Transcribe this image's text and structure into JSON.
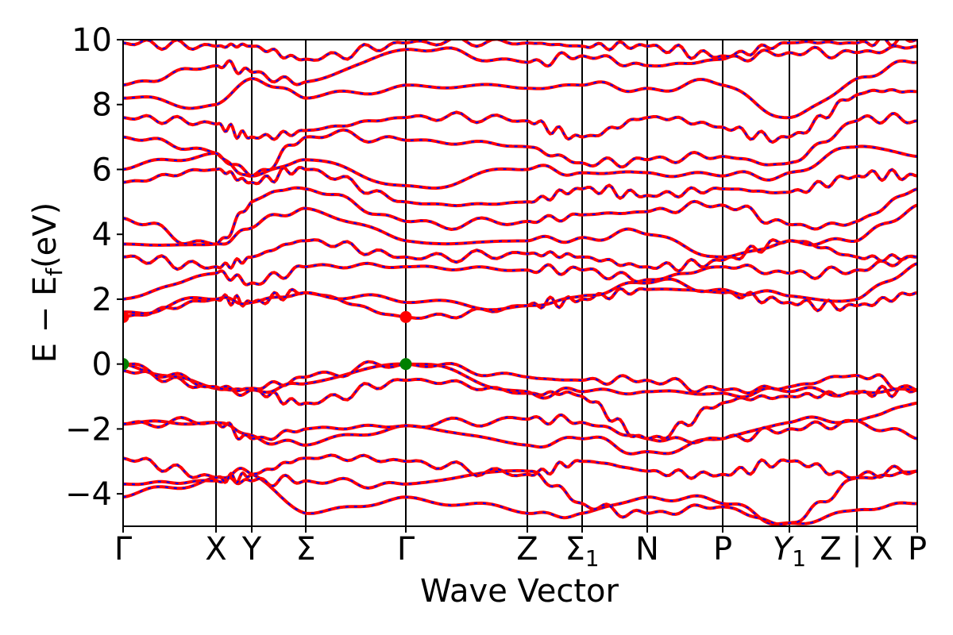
{
  "chart_data": {
    "type": "line",
    "title": "",
    "xlabel": "Wave Vector",
    "ylabel": "E − Ef",
    "ylabel_main": "E − E",
    "ylabel_sub": "f",
    "ylabel_unit": "(eV)",
    "ylim": [
      -5,
      10
    ],
    "yticks": [
      10,
      8,
      6,
      4,
      2,
      0,
      -2,
      -4
    ],
    "ytick_labels": [
      "10",
      "8",
      "6",
      "4",
      "2",
      "0",
      "−2",
      "−4"
    ],
    "xlim": [
      0,
      1
    ],
    "kpoints": [
      {
        "label": "Γ",
        "pos": 0.0
      },
      {
        "label": "X",
        "pos": 0.117
      },
      {
        "label": "Y",
        "pos": 0.162
      },
      {
        "label": "Σ",
        "pos": 0.23
      },
      {
        "label": "Γ",
        "pos": 0.356
      },
      {
        "label": "Z",
        "pos": 0.509
      },
      {
        "label": "Σ",
        "sub": "1",
        "pos": 0.578
      },
      {
        "label": "N",
        "pos": 0.66
      },
      {
        "label": "P",
        "pos": 0.755
      },
      {
        "label": "Y",
        "sub": "1",
        "italic": true,
        "pos": 0.839
      },
      {
        "label": "Z | X",
        "pos": 0.924
      },
      {
        "label": "P",
        "pos": 1.0
      }
    ],
    "colors": {
      "series_a": "#ff0000",
      "series_b": "#0000ff",
      "vbm_marker": "#008000",
      "cbm_marker": "#ff0000",
      "frame": "#000000"
    },
    "markers": [
      {
        "kind": "vbm",
        "x": 0.0,
        "y": 0.0
      },
      {
        "kind": "vbm",
        "x": 0.356,
        "y": 0.0
      },
      {
        "kind": "cbm",
        "x": 0.0,
        "y": 1.45
      },
      {
        "kind": "cbm",
        "x": 0.356,
        "y": 1.45
      }
    ],
    "band_energies": {
      "kpoint_order": [
        "Γ",
        "X",
        "Y",
        "Σ",
        "Γ",
        "Z",
        "Σ1",
        "N",
        "P",
        "Y1",
        "Z|X",
        "P"
      ],
      "bands": [
        [
          -4.1,
          -3.5,
          -3.4,
          -4.6,
          -4.1,
          -4.6,
          -4.6,
          -4.1,
          -4.3,
          -4.9,
          -4.5,
          -4.3
        ],
        [
          -3.7,
          -3.6,
          -3.6,
          -3.6,
          -3.7,
          -3.3,
          -4.3,
          -4.6,
          -4.4,
          -4.9,
          -3.5,
          -3.3
        ],
        [
          -2.9,
          -3.5,
          -3.4,
          -2.9,
          -3.0,
          -3.4,
          -3.0,
          -3.3,
          -3.4,
          -3.0,
          -3.5,
          -3.3
        ],
        [
          -1.85,
          -1.8,
          -2.2,
          -2.5,
          -1.9,
          -2.5,
          -2.3,
          -2.7,
          -2.3,
          -1.8,
          -1.75,
          -2.3
        ],
        [
          -1.85,
          -1.8,
          -2.3,
          -2.0,
          -1.9,
          -1.7,
          -1.8,
          -2.3,
          -2.3,
          -2.0,
          -1.75,
          -1.2
        ],
        [
          -0.2,
          -0.75,
          -0.8,
          -1.2,
          -0.5,
          -0.9,
          -1.0,
          -2.3,
          -1.2,
          -1.0,
          -0.9,
          -0.8
        ],
        [
          0.0,
          -0.75,
          -0.8,
          -0.6,
          0.0,
          -0.85,
          -0.85,
          -0.85,
          -0.9,
          -0.85,
          -0.85,
          -0.8
        ],
        [
          0.0,
          -0.7,
          -0.75,
          -0.4,
          0.0,
          -0.4,
          -0.5,
          -0.5,
          -0.8,
          -0.7,
          -0.35,
          -0.8
        ],
        [
          1.45,
          2.0,
          1.9,
          2.2,
          1.45,
          1.8,
          2.0,
          2.3,
          2.2,
          1.9,
          1.8,
          2.2
        ],
        [
          1.6,
          2.0,
          1.9,
          2.2,
          1.9,
          1.8,
          2.1,
          2.5,
          2.3,
          2.1,
          2.0,
          3.1
        ],
        [
          2.0,
          2.8,
          2.5,
          3.0,
          3.0,
          2.9,
          2.9,
          2.6,
          3.0,
          2.8,
          2.9,
          3.3
        ],
        [
          3.3,
          3.0,
          3.3,
          3.8,
          3.3,
          3.4,
          3.3,
          3.0,
          3.2,
          3.8,
          3.3,
          3.3
        ],
        [
          3.7,
          3.7,
          4.2,
          4.8,
          3.8,
          3.8,
          3.9,
          4.0,
          3.3,
          3.8,
          3.8,
          4.9
        ],
        [
          4.5,
          3.7,
          5.0,
          5.4,
          4.4,
          4.4,
          4.6,
          4.7,
          4.9,
          4.3,
          4.4,
          5.4
        ],
        [
          5.6,
          6.0,
          5.6,
          6.0,
          5.0,
          5.0,
          5.4,
          5.2,
          5.4,
          5.3,
          5.8,
          5.8
        ],
        [
          6.0,
          6.5,
          5.8,
          6.3,
          5.5,
          6.0,
          5.9,
          5.9,
          5.8,
          5.9,
          6.7,
          6.4
        ],
        [
          7.0,
          6.5,
          5.8,
          7.0,
          6.9,
          6.7,
          6.2,
          6.3,
          6.4,
          6.2,
          7.5,
          7.5
        ],
        [
          7.6,
          7.4,
          7.0,
          7.2,
          7.6,
          7.5,
          7.0,
          7.6,
          7.3,
          7.0,
          8.3,
          8.4
        ],
        [
          8.2,
          8.0,
          8.8,
          8.2,
          8.6,
          8.5,
          8.6,
          8.5,
          8.6,
          7.6,
          8.8,
          9.3
        ],
        [
          8.6,
          9.2,
          9.0,
          8.7,
          9.7,
          9.3,
          9.5,
          9.2,
          9.4,
          9.6,
          9.6,
          9.8
        ],
        [
          9.9,
          9.8,
          9.8,
          9.4,
          9.9,
          9.9,
          9.8,
          9.8,
          9.5,
          9.9,
          9.9,
          10.0
        ]
      ]
    }
  }
}
